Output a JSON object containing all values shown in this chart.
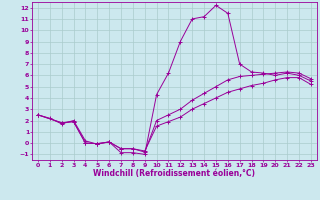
{
  "xlabel": "Windchill (Refroidissement éolien,°C)",
  "background_color": "#cce8ee",
  "grid_color": "#aacccc",
  "line_color": "#990099",
  "xlim": [
    -0.5,
    23.5
  ],
  "ylim": [
    -1.5,
    12.5
  ],
  "xticks": [
    0,
    1,
    2,
    3,
    4,
    5,
    6,
    7,
    8,
    9,
    10,
    11,
    12,
    13,
    14,
    15,
    16,
    17,
    18,
    19,
    20,
    21,
    22,
    23
  ],
  "yticks": [
    -1,
    0,
    1,
    2,
    3,
    4,
    5,
    6,
    7,
    8,
    9,
    10,
    11,
    12
  ],
  "line1_x": [
    0,
    1,
    2,
    3,
    4,
    5,
    6,
    7,
    8,
    9,
    10,
    11,
    12,
    13,
    14,
    15,
    16,
    17,
    18,
    19,
    20,
    21,
    22,
    23
  ],
  "line1_y": [
    2.5,
    2.2,
    1.7,
    2.0,
    0.2,
    -0.1,
    0.1,
    -0.85,
    -0.85,
    -1.0,
    4.3,
    6.2,
    9.0,
    11.0,
    11.2,
    12.2,
    11.5,
    7.0,
    6.3,
    6.2,
    6.0,
    6.2,
    6.0,
    5.5
  ],
  "line2_x": [
    0,
    2,
    3,
    4,
    5,
    6,
    7,
    8,
    9,
    10,
    11,
    12,
    13,
    14,
    15,
    16,
    17,
    18,
    19,
    20,
    21,
    22,
    23
  ],
  "line2_y": [
    2.5,
    1.8,
    1.9,
    0.0,
    -0.05,
    0.1,
    -0.5,
    -0.5,
    -0.8,
    2.0,
    2.5,
    3.0,
    3.8,
    4.4,
    5.0,
    5.6,
    5.9,
    6.0,
    6.1,
    6.2,
    6.3,
    6.2,
    5.7
  ],
  "line3_x": [
    0,
    2,
    3,
    4,
    5,
    6,
    7,
    8,
    9,
    10,
    11,
    12,
    13,
    14,
    15,
    16,
    17,
    18,
    19,
    20,
    21,
    22,
    23
  ],
  "line3_y": [
    2.5,
    1.8,
    1.9,
    0.0,
    -0.05,
    0.1,
    -0.5,
    -0.5,
    -0.7,
    1.5,
    1.9,
    2.3,
    3.0,
    3.5,
    4.0,
    4.5,
    4.8,
    5.1,
    5.3,
    5.6,
    5.8,
    5.8,
    5.2
  ]
}
